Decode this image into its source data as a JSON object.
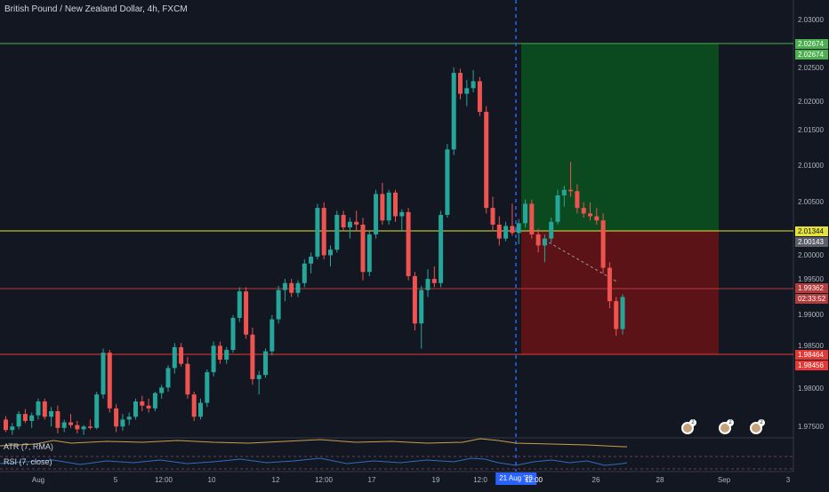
{
  "symbol_title": "British Pound / New Zealand Dollar, 4h, FXCM",
  "indicators": {
    "atr_label": "ATR (7, RMA)",
    "rsi_label": "RSI (7, close)"
  },
  "price_axis": {
    "ticks": [
      "2.03000",
      "2.02500",
      "2.02000",
      "2.01500",
      "2.01000",
      "2.00500",
      "2.00000",
      "1.99500",
      "1.99000",
      "1.98500",
      "1.98000",
      "1.97500"
    ]
  },
  "price_tags": {
    "target_top": "2.02674",
    "target_bottom": "2.02674",
    "entry": "2.01344",
    "current_gray": "2.00143",
    "last_price": "1.99362",
    "countdown": "02:33:52",
    "stop_top": "1.98464",
    "stop_bottom": "1.98456"
  },
  "time_axis": {
    "ticks": [
      "Aug",
      "5",
      "12:00",
      "10",
      "12",
      "12:00",
      "17",
      "19",
      "12:0",
      "12:00",
      "26",
      "28",
      "Sep",
      "3"
    ]
  },
  "crosshair_date": "21 Aug '20",
  "colors": {
    "bg": "#131722",
    "up": "#26a69a",
    "down": "#ef5350",
    "target_zone": "#0b4a1f",
    "stop_zone": "#5c1318",
    "target_line": "#4caf50",
    "entry_line": "#e4e23a",
    "stop_line": "#e53935",
    "last_line": "#b23b3b",
    "atr": "#c9a04a",
    "rsi": "#2e6dbd"
  },
  "event_icons": [
    "flag-uk-event-icon",
    "flag-uk-event-icon",
    "flag-uk-event-icon"
  ],
  "chart_data": {
    "type": "candlestick",
    "title": "British Pound / New Zealand Dollar, 4h, FXCM",
    "ylim": [
      1.9735,
      2.0355
    ],
    "ohlc": [
      [
        1.976,
        1.9765,
        1.9742,
        1.9745
      ],
      [
        1.9745,
        1.9755,
        1.9738,
        1.975
      ],
      [
        1.975,
        1.9772,
        1.9746,
        1.9768
      ],
      [
        1.9768,
        1.9775,
        1.9755,
        1.9758
      ],
      [
        1.9758,
        1.977,
        1.9748,
        1.9766
      ],
      [
        1.9766,
        1.979,
        1.976,
        1.9786
      ],
      [
        1.9786,
        1.979,
        1.976,
        1.9764
      ],
      [
        1.9764,
        1.9778,
        1.975,
        1.9772
      ],
      [
        1.9772,
        1.978,
        1.974,
        1.9748
      ],
      [
        1.9748,
        1.976,
        1.9742,
        1.9756
      ],
      [
        1.9756,
        1.9768,
        1.9748,
        1.9752
      ],
      [
        1.9752,
        1.9758,
        1.974,
        1.9746
      ],
      [
        1.9746,
        1.9752,
        1.9738,
        1.975
      ],
      [
        1.975,
        1.976,
        1.9746,
        1.9748
      ],
      [
        1.9748,
        1.98,
        1.9746,
        1.9796
      ],
      [
        1.9796,
        1.9862,
        1.979,
        1.9856
      ],
      [
        1.9856,
        1.986,
        1.977,
        1.9776
      ],
      [
        1.9776,
        1.9782,
        1.9742,
        1.975
      ],
      [
        1.975,
        1.9768,
        1.9744,
        1.976
      ],
      [
        1.976,
        1.977,
        1.9752,
        1.9764
      ],
      [
        1.9764,
        1.979,
        1.976,
        1.9786
      ],
      [
        1.9786,
        1.9794,
        1.9772,
        1.978
      ],
      [
        1.978,
        1.979,
        1.977,
        1.9776
      ],
      [
        1.9776,
        1.98,
        1.9772,
        1.9798
      ],
      [
        1.9798,
        1.981,
        1.979,
        1.9806
      ],
      [
        1.9806,
        1.9838,
        1.98,
        1.9834
      ],
      [
        1.9834,
        1.987,
        1.9826,
        1.9864
      ],
      [
        1.9864,
        1.987,
        1.9836,
        1.984
      ],
      [
        1.984,
        1.985,
        1.979,
        1.9796
      ],
      [
        1.9796,
        1.98,
        1.9758,
        1.9764
      ],
      [
        1.9764,
        1.979,
        1.976,
        1.9784
      ],
      [
        1.9784,
        1.9832,
        1.9778,
        1.9828
      ],
      [
        1.9828,
        1.9872,
        1.9822,
        1.9866
      ],
      [
        1.9866,
        1.9872,
        1.984,
        1.9846
      ],
      [
        1.9846,
        1.9864,
        1.984,
        1.986
      ],
      [
        1.986,
        1.991,
        1.9856,
        1.9906
      ],
      [
        1.9906,
        1.995,
        1.99,
        1.9944
      ],
      [
        1.9944,
        1.995,
        1.9876,
        1.9882
      ],
      [
        1.9882,
        1.9892,
        1.981,
        1.9818
      ],
      [
        1.9818,
        1.983,
        1.9796,
        1.9824
      ],
      [
        1.9824,
        1.9862,
        1.982,
        1.9858
      ],
      [
        1.9858,
        1.991,
        1.9852,
        1.9904
      ],
      [
        1.9904,
        1.9952,
        1.9898,
        1.9946
      ],
      [
        1.9946,
        1.9962,
        1.993,
        1.9956
      ],
      [
        1.9956,
        1.9962,
        1.9936,
        1.9942
      ],
      [
        1.9942,
        1.996,
        1.9936,
        1.9956
      ],
      [
        1.9956,
        1.999,
        1.995,
        1.9984
      ],
      [
        1.9984,
        2.0,
        1.997,
        1.9994
      ],
      [
        1.9994,
        2.007,
        1.999,
        2.0064
      ],
      [
        2.0064,
        2.0072,
        1.999,
        1.9996
      ],
      [
        1.9996,
        2.001,
        1.998,
        2.0004
      ],
      [
        2.0004,
        2.006,
        2.0,
        2.0054
      ],
      [
        2.0054,
        2.006,
        2.003,
        2.0036
      ],
      [
        2.0036,
        2.005,
        2.002,
        2.0044
      ],
      [
        2.0044,
        2.006,
        2.003,
        2.004
      ],
      [
        2.004,
        2.005,
        1.996,
        1.9972
      ],
      [
        1.9972,
        2.003,
        1.9966,
        2.0026
      ],
      [
        2.0026,
        2.009,
        2.002,
        2.0084
      ],
      [
        2.0084,
        2.01,
        2.004,
        2.0046
      ],
      [
        2.0046,
        2.009,
        2.004,
        2.0086
      ],
      [
        2.0086,
        2.009,
        2.0044,
        2.0052
      ],
      [
        2.0052,
        2.0062,
        2.003,
        2.0058
      ],
      [
        2.0058,
        2.0064,
        1.996,
        1.9966
      ],
      [
        1.9966,
        1.9972,
        1.9888,
        1.9898
      ],
      [
        1.9898,
        1.9952,
        1.9862,
        1.9946
      ],
      [
        1.9946,
        1.9976,
        1.9936,
        1.9962
      ],
      [
        1.9962,
        1.998,
        1.995,
        1.9956
      ],
      [
        1.9956,
        2.006,
        1.995,
        2.0054
      ],
      [
        2.0054,
        2.0156,
        2.005,
        2.0148
      ],
      [
        2.0148,
        2.0266,
        2.014,
        2.0258
      ],
      [
        2.0258,
        2.0264,
        2.022,
        2.0228
      ],
      [
        2.0228,
        2.0248,
        2.021,
        2.0236
      ],
      [
        2.0236,
        2.0262,
        2.023,
        2.0246
      ],
      [
        2.0246,
        2.0252,
        2.0196,
        2.0202
      ],
      [
        2.0202,
        2.021,
        2.0056,
        2.0064
      ],
      [
        2.0064,
        2.008,
        2.003,
        2.004
      ],
      [
        2.004,
        2.0052,
        2.001,
        2.002
      ],
      [
        2.002,
        2.0044,
        2.0016,
        2.0038
      ],
      [
        2.0038,
        2.007,
        2.0024,
        2.0028
      ],
      [
        2.0028,
        2.0048,
        2.0012,
        2.0042
      ],
      [
        2.0042,
        2.0076,
        2.0036,
        2.007
      ],
      [
        2.007,
        2.0076,
        2.002,
        2.0026
      ],
      [
        2.0026,
        2.0034,
        2.0,
        2.001
      ],
      [
        2.001,
        2.0026,
        1.9986,
        2.002
      ],
      [
        2.002,
        2.005,
        2.0014,
        2.0044
      ],
      [
        2.0044,
        2.009,
        2.004,
        2.0082
      ],
      [
        2.0082,
        2.0096,
        2.0066,
        2.009
      ],
      [
        2.009,
        2.013,
        2.008,
        2.0088
      ],
      [
        2.0088,
        2.0098,
        2.0056,
        2.0064
      ],
      [
        2.0064,
        2.0072,
        2.005,
        2.0056
      ],
      [
        2.0056,
        2.0072,
        2.0046,
        2.0052
      ],
      [
        2.0052,
        2.0064,
        2.004,
        2.0046
      ],
      [
        2.0046,
        2.0056,
        1.997,
        1.9978
      ],
      [
        1.9978,
        1.9986,
        1.992,
        1.993
      ],
      [
        1.993,
        1.9936,
        1.988,
        1.989
      ],
      [
        1.989,
        1.994,
        1.9882,
        1.9936
      ]
    ]
  }
}
